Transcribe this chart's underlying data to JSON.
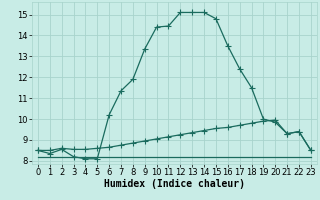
{
  "xlabel": "Humidex (Indice chaleur)",
  "xlim": [
    -0.5,
    23.5
  ],
  "ylim": [
    7.85,
    15.6
  ],
  "yticks": [
    8,
    9,
    10,
    11,
    12,
    13,
    14,
    15
  ],
  "xticks": [
    0,
    1,
    2,
    3,
    4,
    5,
    6,
    7,
    8,
    9,
    10,
    11,
    12,
    13,
    14,
    15,
    16,
    17,
    18,
    19,
    20,
    21,
    22,
    23
  ],
  "bg_color": "#c8ece6",
  "grid_color": "#a8d4cc",
  "line_color": "#1a6b5e",
  "line1_x": [
    0,
    1,
    2,
    3,
    4,
    5,
    6,
    7,
    8,
    9,
    10,
    11,
    12,
    13,
    14,
    15,
    16,
    17,
    18,
    19,
    20,
    21,
    22,
    23
  ],
  "line1_y": [
    8.5,
    8.35,
    8.55,
    8.2,
    8.1,
    8.1,
    10.2,
    11.35,
    11.9,
    13.35,
    14.4,
    14.45,
    15.1,
    15.1,
    15.1,
    14.8,
    13.5,
    12.4,
    11.5,
    10.0,
    9.85,
    9.3,
    9.4,
    8.5
  ],
  "line2_x": [
    0,
    1,
    2,
    3,
    4,
    5,
    6,
    7,
    8,
    9,
    10,
    11,
    12,
    13,
    14,
    15,
    16,
    17,
    18,
    19,
    20,
    21,
    22,
    23
  ],
  "line2_y": [
    8.5,
    8.5,
    8.6,
    8.55,
    8.55,
    8.6,
    8.65,
    8.75,
    8.85,
    8.95,
    9.05,
    9.15,
    9.25,
    9.35,
    9.45,
    9.55,
    9.6,
    9.7,
    9.8,
    9.9,
    9.95,
    9.3,
    9.4,
    8.5
  ],
  "line3_x": [
    0,
    1,
    2,
    3,
    4,
    5,
    6,
    7,
    8,
    9,
    10,
    11,
    12,
    13,
    14,
    15,
    16,
    17,
    18,
    19,
    20,
    21,
    22,
    23
  ],
  "line3_y": [
    8.2,
    8.2,
    8.2,
    8.2,
    8.2,
    8.2,
    8.2,
    8.2,
    8.2,
    8.2,
    8.2,
    8.2,
    8.2,
    8.2,
    8.2,
    8.2,
    8.2,
    8.2,
    8.2,
    8.2,
    8.2,
    8.2,
    8.2,
    8.2
  ],
  "marker": "+",
  "marker_size": 4,
  "linewidth": 0.9,
  "tick_fontsize": 6,
  "label_fontsize": 7
}
